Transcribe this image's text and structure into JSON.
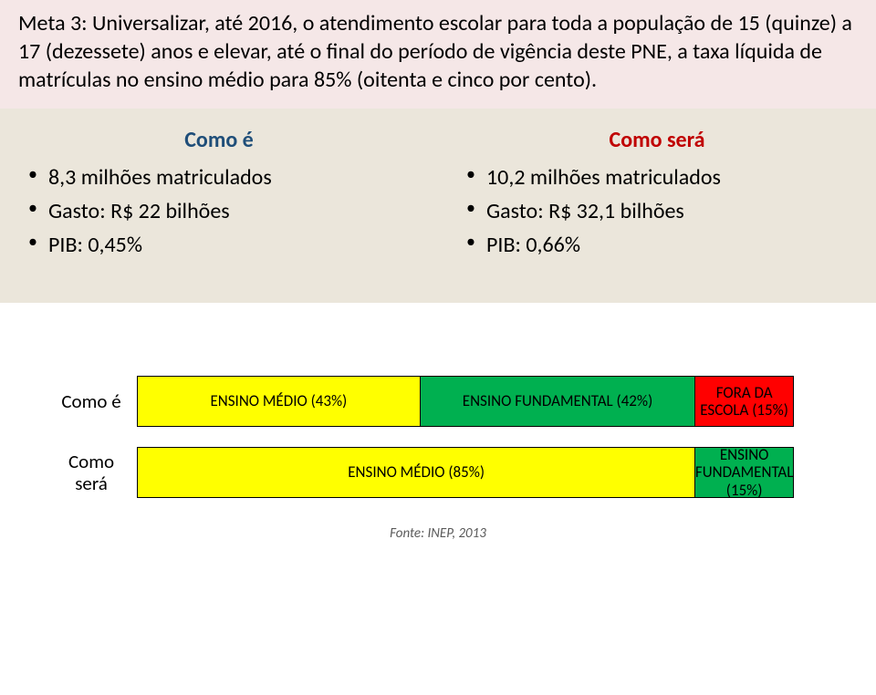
{
  "header_text": "Meta 3: Universalizar, até 2016, o atendimento escolar para toda a população de 15 (quinze) a 17 (dezessete) anos e elevar, até o final do período de vigência deste PNE, a taxa líquida de matrículas no ensino médio para 85% (oitenta e cinco por cento).",
  "header_bg": "#f5e7e7",
  "panel_bg": "#ebe6db",
  "left": {
    "title": "Como é",
    "title_color": "#1f4e79",
    "items": [
      "8,3 milhões matriculados",
      "Gasto: R$ 22 bilhões",
      "PIB: 0,45%"
    ]
  },
  "right": {
    "title": "Como será",
    "title_color": "#c00000",
    "items": [
      "10,2 milhões matriculados",
      "Gasto: R$ 32,1 bilhões",
      "PIB: 0,66%"
    ]
  },
  "bars": {
    "total_width": 720,
    "rows": [
      {
        "label": "Como é",
        "segments": [
          {
            "text": "ENSINO MÉDIO (43%)",
            "width_pct": 43,
            "bg": "#ffff00"
          },
          {
            "text": "ENSINO FUNDAMENTAL (42%)",
            "width_pct": 42,
            "bg": "#00b050"
          },
          {
            "text": "FORA DA ESCOLA (15%)",
            "width_pct": 15,
            "bg": "#ff0000"
          }
        ]
      },
      {
        "label": "Como será",
        "segments": [
          {
            "text": "ENSINO MÉDIO (85%)",
            "width_pct": 85,
            "bg": "#ffff00"
          },
          {
            "text": "ENSINO FUNDAMENTAL (15%)",
            "width_pct": 15,
            "bg": "#00b050"
          }
        ]
      }
    ]
  },
  "source": "Fonte: INEP, 2013"
}
